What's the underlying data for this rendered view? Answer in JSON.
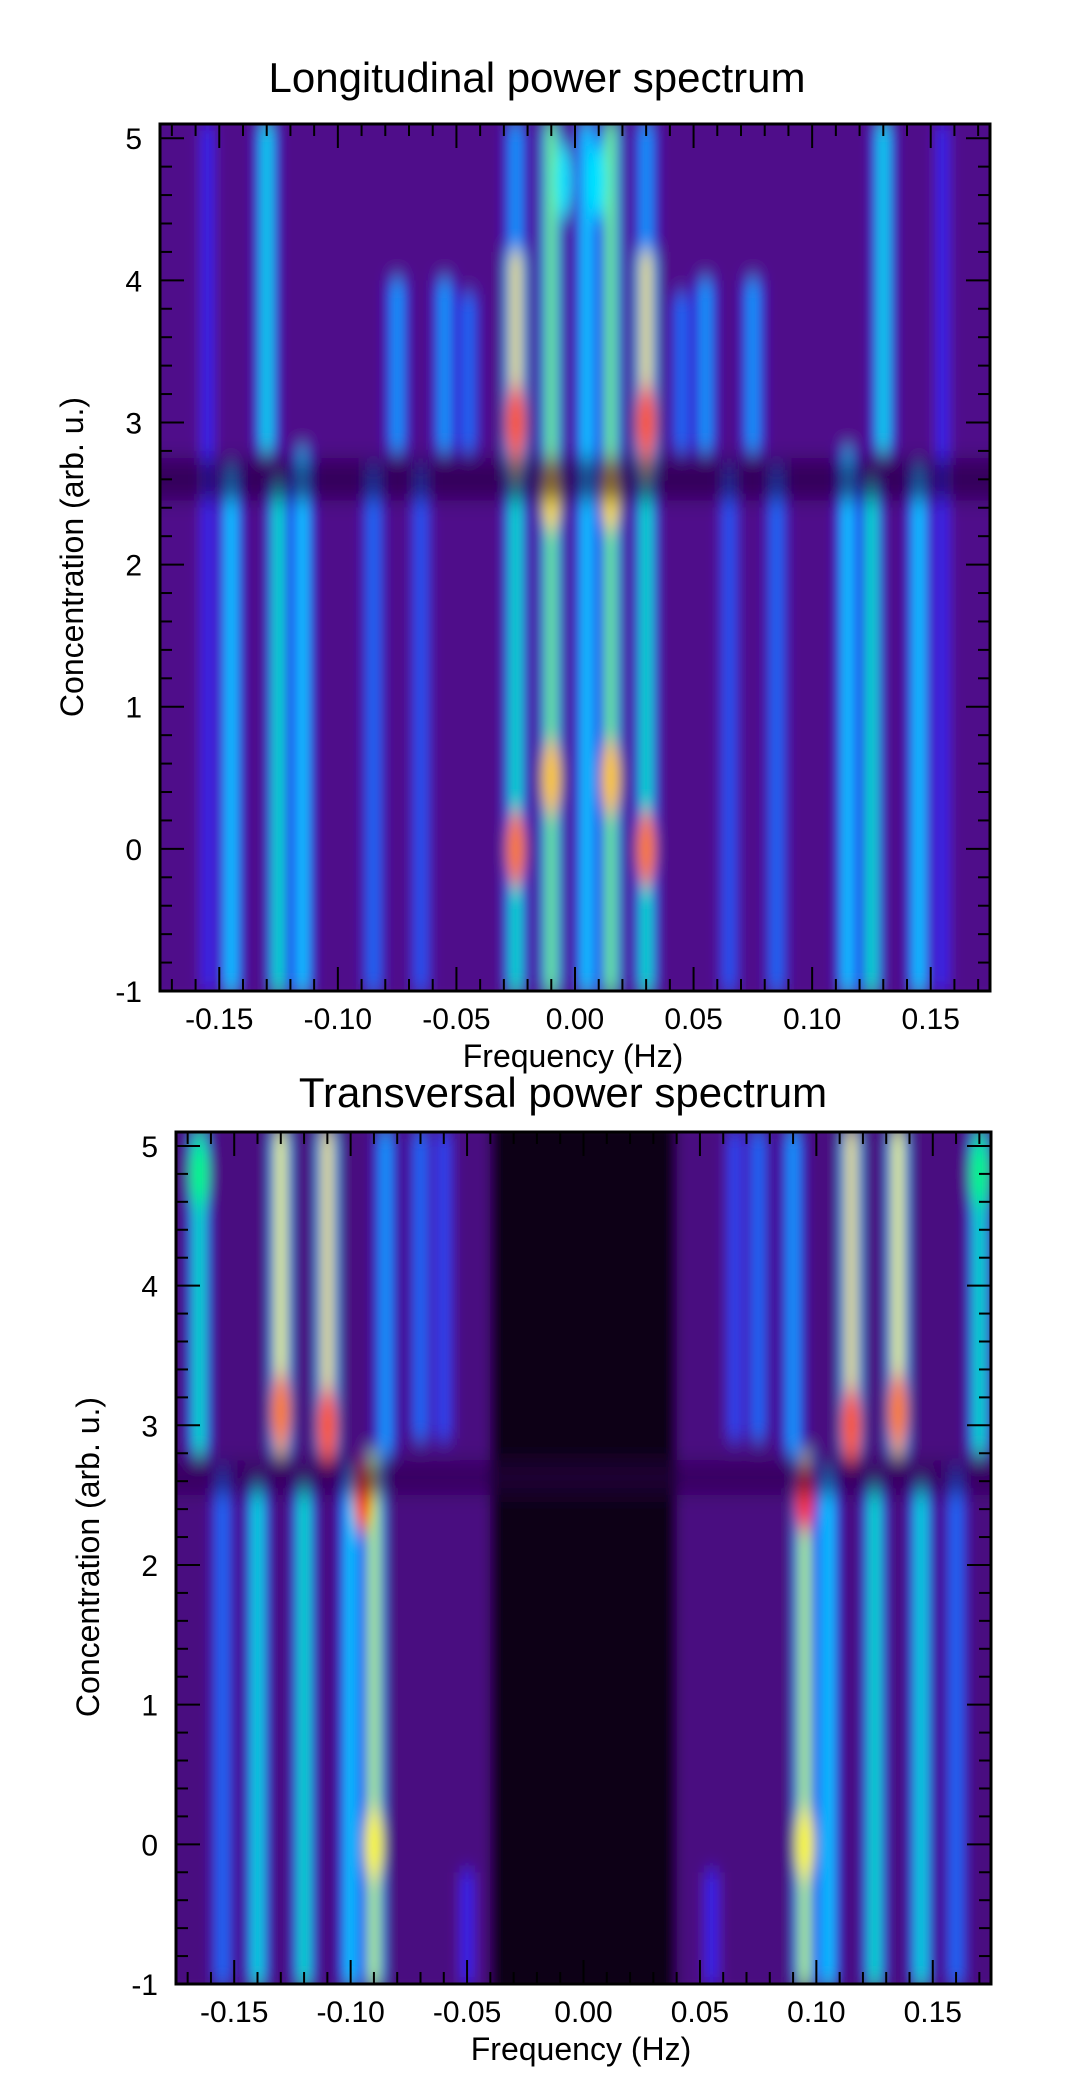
{
  "chart_data": [
    {
      "type": "heatmap",
      "title": "Longitudinal power spectrum",
      "xlabel": "Frequency (Hz)",
      "ylabel": "Concentration (arb. u.)",
      "xlim": [
        -0.175,
        0.175
      ],
      "ylim": [
        -1,
        5.1
      ],
      "xticks": [
        -0.15,
        -0.1,
        -0.05,
        0.0,
        0.05,
        0.1,
        0.15
      ],
      "xtick_labels": [
        "-0.15",
        "-0.10",
        "-0.05",
        "0.00",
        "0.05",
        "0.10",
        "0.15"
      ],
      "yticks": [
        -1,
        0,
        1,
        2,
        3,
        4,
        5
      ],
      "ytick_labels": [
        "-1",
        "0",
        "1",
        "2",
        "3",
        "4",
        "5"
      ],
      "colormap": [
        "#000000",
        "#3c0066",
        "#5a14a0",
        "#1a1aff",
        "#0070ff",
        "#00e6ff",
        "#00ff70",
        "#ffff00",
        "#ff7000",
        "#ff0000"
      ],
      "background_level": 0.18,
      "ridges": [
        {
          "f": -0.155,
          "y": [
            -1,
            5.1
          ],
          "level": 0.35
        },
        {
          "f": -0.145,
          "y": [
            -1,
            2.7
          ],
          "level": 0.55
        },
        {
          "f": -0.13,
          "y": [
            2.8,
            5.1
          ],
          "level": 0.58
        },
        {
          "f": -0.125,
          "y": [
            -1,
            2.6
          ],
          "level": 0.62
        },
        {
          "f": -0.115,
          "y": [
            -1,
            2.8
          ],
          "level": 0.55
        },
        {
          "f": -0.085,
          "y": [
            -1,
            2.7
          ],
          "level": 0.45
        },
        {
          "f": -0.075,
          "y": [
            2.8,
            4.0
          ],
          "level": 0.5
        },
        {
          "f": -0.065,
          "y": [
            -1,
            2.7
          ],
          "level": 0.42
        },
        {
          "f": -0.055,
          "y": [
            2.8,
            4.0
          ],
          "level": 0.5
        },
        {
          "f": -0.045,
          "y": [
            2.8,
            3.9
          ],
          "level": 0.45
        },
        {
          "f": -0.025,
          "y": [
            -1,
            2.6
          ],
          "level": 0.62
        },
        {
          "f": -0.025,
          "y": [
            2.6,
            4.2
          ],
          "level": 0.8
        },
        {
          "f": -0.025,
          "y": [
            4.2,
            5.1
          ],
          "level": 0.5
        },
        {
          "f": -0.01,
          "y": [
            -1,
            5.1
          ],
          "level": 0.72
        },
        {
          "f": 0.005,
          "y": [
            -1,
            5.1
          ],
          "level": 0.55
        },
        {
          "f": 0.015,
          "y": [
            -1,
            5.1
          ],
          "level": 0.72
        },
        {
          "f": 0.03,
          "y": [
            -1,
            2.6
          ],
          "level": 0.62
        },
        {
          "f": 0.03,
          "y": [
            2.6,
            4.2
          ],
          "level": 0.8
        },
        {
          "f": 0.03,
          "y": [
            4.2,
            5.1
          ],
          "level": 0.5
        },
        {
          "f": 0.045,
          "y": [
            2.8,
            3.9
          ],
          "level": 0.45
        },
        {
          "f": 0.055,
          "y": [
            2.8,
            4.0
          ],
          "level": 0.5
        },
        {
          "f": 0.065,
          "y": [
            -1,
            2.7
          ],
          "level": 0.42
        },
        {
          "f": 0.075,
          "y": [
            2.8,
            4.0
          ],
          "level": 0.5
        },
        {
          "f": 0.085,
          "y": [
            -1,
            2.7
          ],
          "level": 0.45
        },
        {
          "f": 0.115,
          "y": [
            -1,
            2.8
          ],
          "level": 0.55
        },
        {
          "f": 0.125,
          "y": [
            -1,
            2.6
          ],
          "level": 0.62
        },
        {
          "f": 0.13,
          "y": [
            2.8,
            5.1
          ],
          "level": 0.58
        },
        {
          "f": 0.145,
          "y": [
            -1,
            2.7
          ],
          "level": 0.55
        },
        {
          "f": 0.155,
          "y": [
            -1,
            5.1
          ],
          "level": 0.35
        }
      ],
      "hotspots": [
        {
          "f": -0.025,
          "y": 3.0,
          "level": 0.92
        },
        {
          "f": 0.03,
          "y": 3.0,
          "level": 0.92
        },
        {
          "f": -0.025,
          "y": 0.0,
          "level": 0.88
        },
        {
          "f": 0.03,
          "y": 0.0,
          "level": 0.88
        },
        {
          "f": -0.01,
          "y": 0.5,
          "level": 0.82
        },
        {
          "f": 0.015,
          "y": 0.5,
          "level": 0.82
        },
        {
          "f": -0.01,
          "y": 2.5,
          "level": 0.8
        },
        {
          "f": 0.015,
          "y": 2.5,
          "level": 0.8
        },
        {
          "f": -0.005,
          "y": 4.7,
          "level": 0.55
        },
        {
          "f": 0.01,
          "y": 4.7,
          "level": 0.55
        }
      ],
      "dark_bands": [
        {
          "f": [
            -0.175,
            0.175
          ],
          "y": [
            2.45,
            2.75
          ],
          "level": 0.06
        }
      ]
    },
    {
      "type": "heatmap",
      "title": "Transversal power spectrum",
      "xlabel": "Frequency (Hz)",
      "ylabel": "Concentration (arb. u.)",
      "xlim": [
        -0.175,
        0.175
      ],
      "ylim": [
        -1,
        5.1
      ],
      "xticks": [
        -0.15,
        -0.1,
        -0.05,
        0.0,
        0.05,
        0.1,
        0.15
      ],
      "xtick_labels": [
        "-0.15",
        "-0.10",
        "-0.05",
        "0.00",
        "0.05",
        "0.10",
        "0.15"
      ],
      "yticks": [
        -1,
        0,
        1,
        2,
        3,
        4,
        5
      ],
      "ytick_labels": [
        "-1",
        "0",
        "1",
        "2",
        "3",
        "4",
        "5"
      ],
      "colormap": [
        "#000000",
        "#3c0066",
        "#5a14a0",
        "#1a1aff",
        "#0070ff",
        "#00e6ff",
        "#00ff70",
        "#ffff00",
        "#ff7000",
        "#ff0000"
      ],
      "background_level": 0.16,
      "central_dark": {
        "f": [
          -0.04,
          0.04
        ],
        "level": 0.02
      },
      "ridges": [
        {
          "f": -0.165,
          "y": [
            2.8,
            5.1
          ],
          "level": 0.62
        },
        {
          "f": -0.155,
          "y": [
            -1,
            2.7
          ],
          "level": 0.45
        },
        {
          "f": -0.14,
          "y": [
            -1,
            2.6
          ],
          "level": 0.6
        },
        {
          "f": -0.13,
          "y": [
            2.8,
            5.1
          ],
          "level": 0.78
        },
        {
          "f": -0.12,
          "y": [
            -1,
            2.6
          ],
          "level": 0.62
        },
        {
          "f": -0.11,
          "y": [
            2.8,
            5.1
          ],
          "level": 0.8
        },
        {
          "f": -0.1,
          "y": [
            -1,
            2.7
          ],
          "level": 0.55
        },
        {
          "f": -0.09,
          "y": [
            -1,
            2.8
          ],
          "level": 0.75
        },
        {
          "f": -0.085,
          "y": [
            2.8,
            5.1
          ],
          "level": 0.5
        },
        {
          "f": -0.07,
          "y": [
            2.9,
            5.1
          ],
          "level": 0.45
        },
        {
          "f": -0.06,
          "y": [
            2.9,
            5.1
          ],
          "level": 0.4
        },
        {
          "f": -0.05,
          "y": [
            -1,
            -0.2
          ],
          "level": 0.35
        },
        {
          "f": 0.055,
          "y": [
            -1,
            -0.2
          ],
          "level": 0.35
        },
        {
          "f": 0.065,
          "y": [
            2.9,
            5.1
          ],
          "level": 0.4
        },
        {
          "f": 0.075,
          "y": [
            2.9,
            5.1
          ],
          "level": 0.45
        },
        {
          "f": 0.09,
          "y": [
            2.8,
            5.1
          ],
          "level": 0.5
        },
        {
          "f": 0.095,
          "y": [
            -1,
            2.8
          ],
          "level": 0.75
        },
        {
          "f": 0.105,
          "y": [
            -1,
            2.7
          ],
          "level": 0.55
        },
        {
          "f": 0.115,
          "y": [
            2.8,
            5.1
          ],
          "level": 0.8
        },
        {
          "f": 0.125,
          "y": [
            -1,
            2.6
          ],
          "level": 0.62
        },
        {
          "f": 0.135,
          "y": [
            2.8,
            5.1
          ],
          "level": 0.78
        },
        {
          "f": 0.145,
          "y": [
            -1,
            2.6
          ],
          "level": 0.6
        },
        {
          "f": 0.16,
          "y": [
            -1,
            2.7
          ],
          "level": 0.45
        },
        {
          "f": 0.17,
          "y": [
            2.8,
            5.1
          ],
          "level": 0.62
        }
      ],
      "hotspots": [
        {
          "f": -0.13,
          "y": 3.1,
          "level": 0.88
        },
        {
          "f": -0.11,
          "y": 3.0,
          "level": 0.92
        },
        {
          "f": -0.095,
          "y": 2.5,
          "level": 0.96
        },
        {
          "f": 0.095,
          "y": 2.5,
          "level": 0.96
        },
        {
          "f": 0.115,
          "y": 3.0,
          "level": 0.92
        },
        {
          "f": 0.135,
          "y": 3.1,
          "level": 0.88
        },
        {
          "f": -0.09,
          "y": 0.0,
          "level": 0.78
        },
        {
          "f": 0.095,
          "y": 0.0,
          "level": 0.78
        },
        {
          "f": -0.165,
          "y": 4.8,
          "level": 0.65
        },
        {
          "f": 0.17,
          "y": 4.8,
          "level": 0.65
        }
      ],
      "dark_bands": [
        {
          "f": [
            -0.175,
            0.175
          ],
          "y": [
            2.5,
            2.75
          ],
          "level": 0.08
        }
      ]
    }
  ]
}
